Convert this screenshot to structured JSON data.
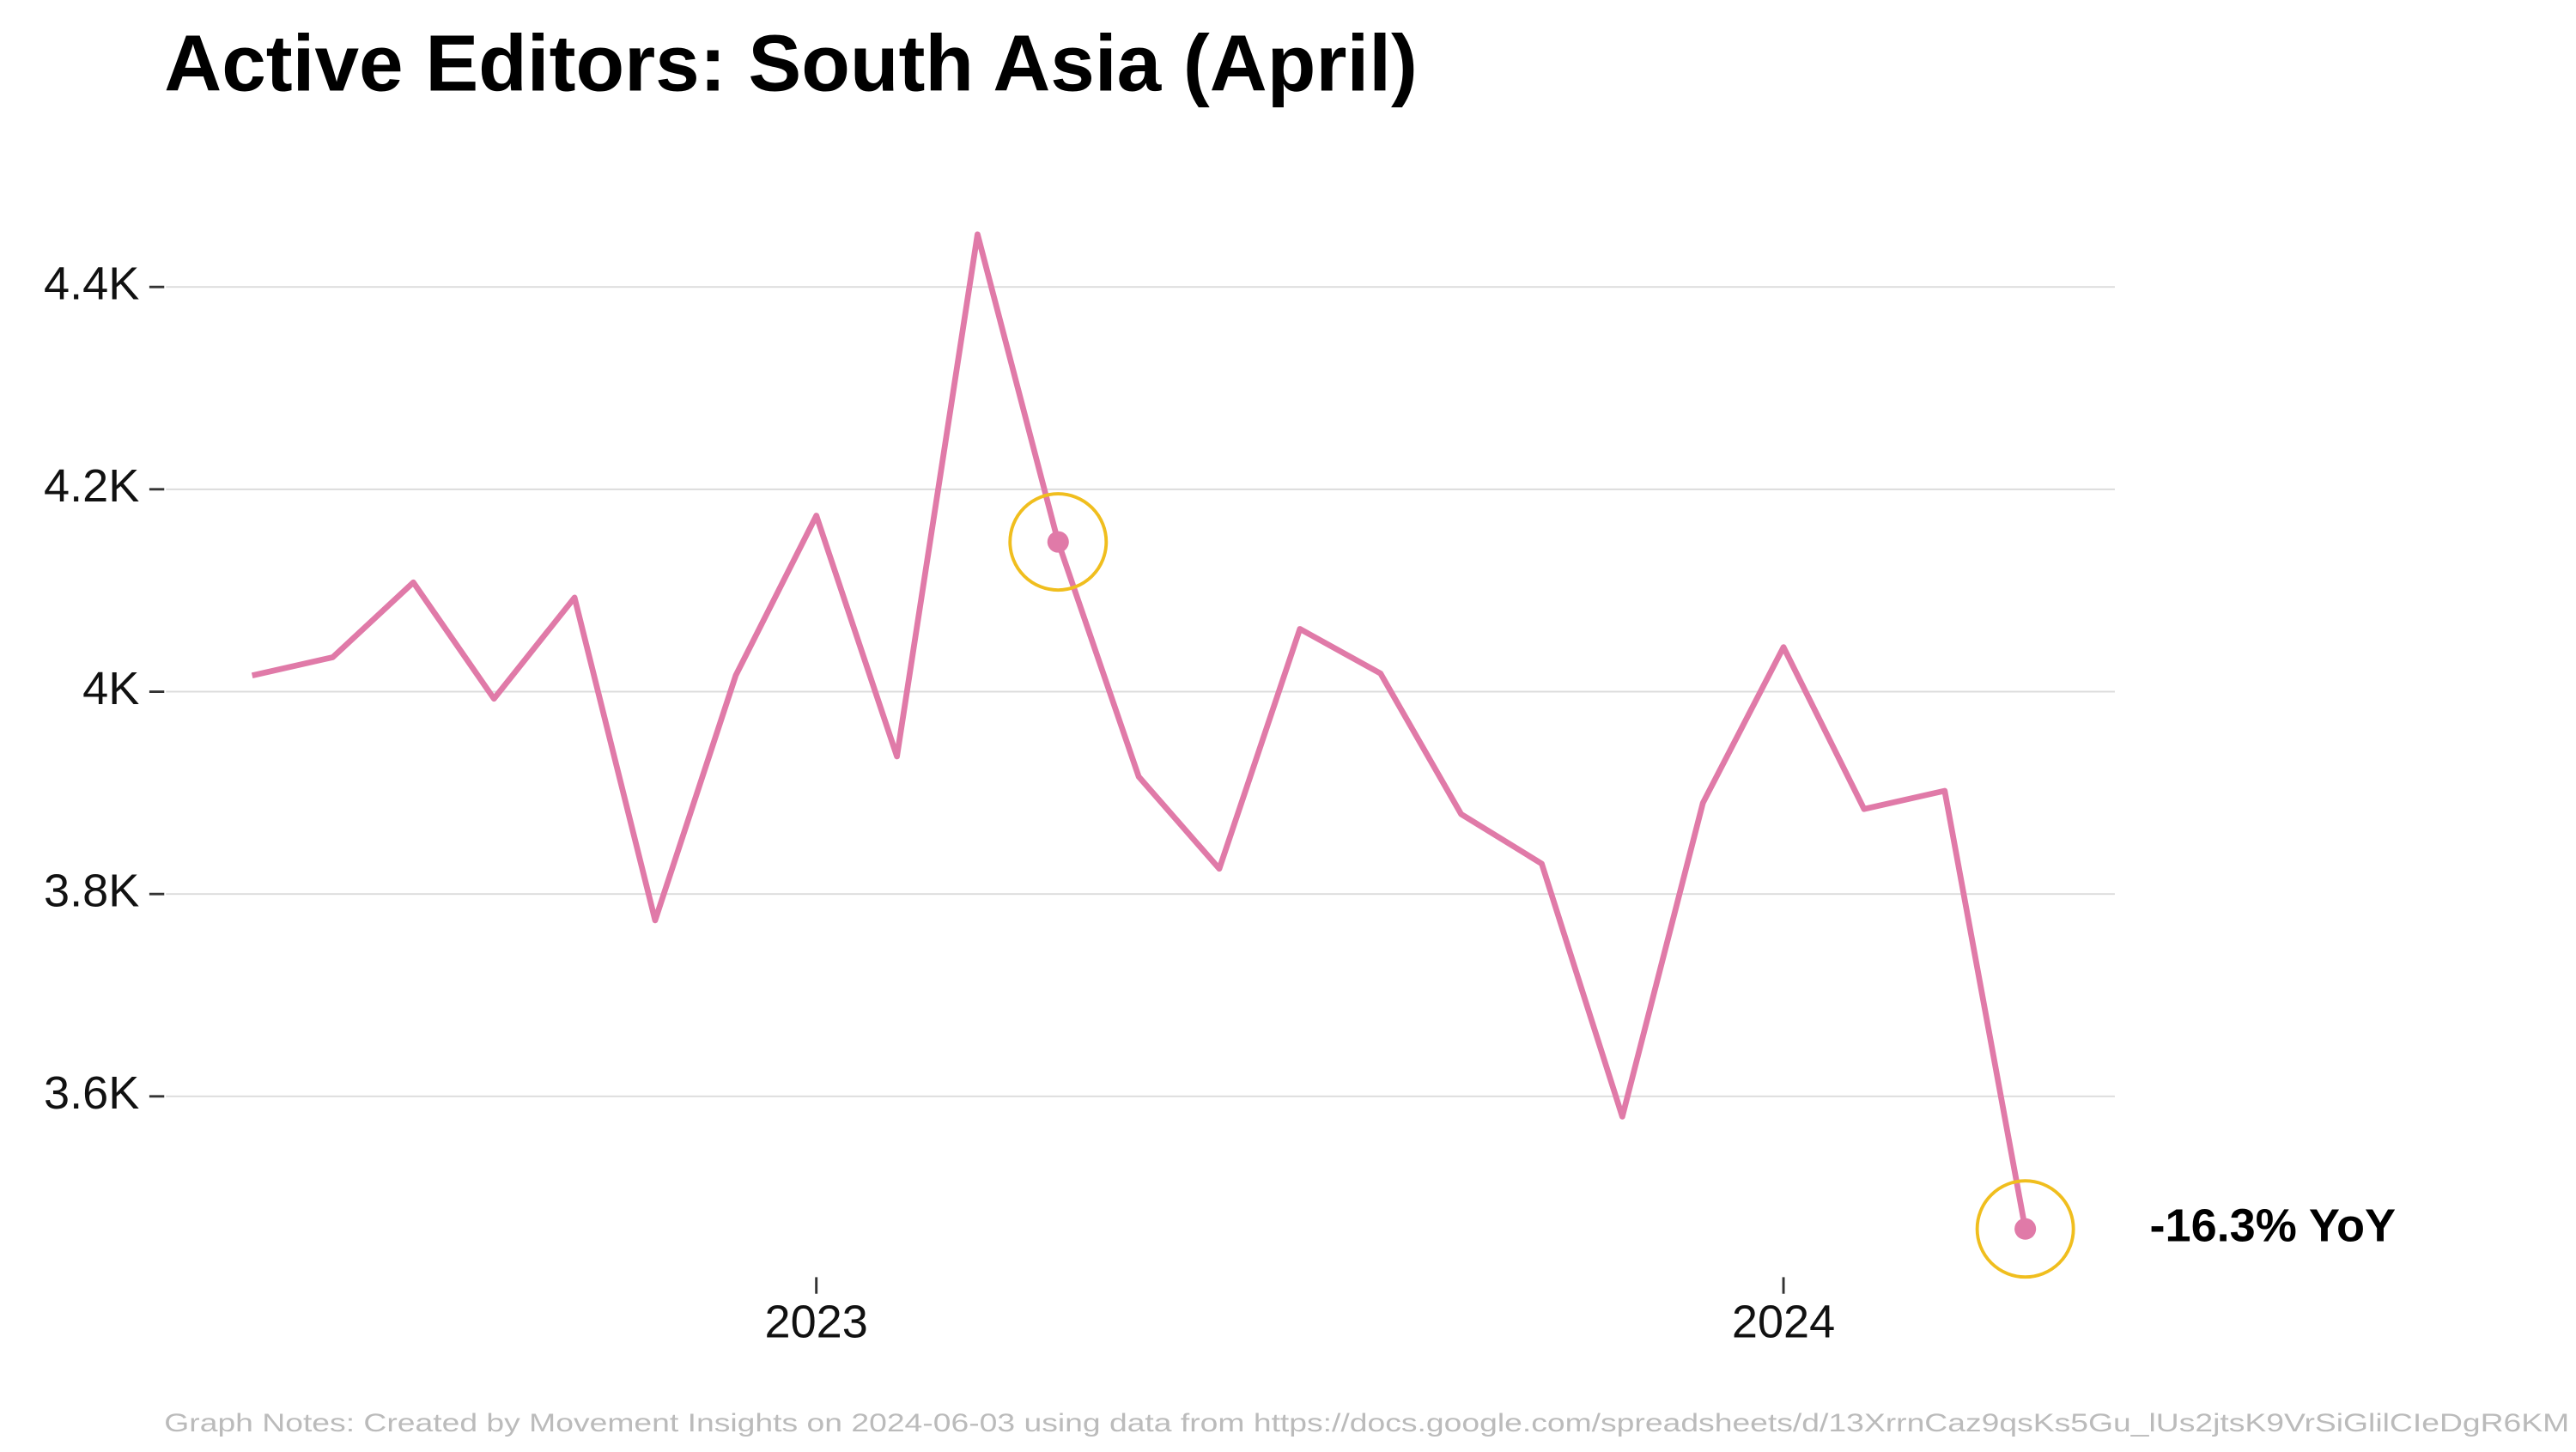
{
  "chart_data": {
    "type": "line",
    "title": "Active Editors: South Asia (April)",
    "x": [
      "2022-06",
      "2022-07",
      "2022-08",
      "2022-09",
      "2022-10",
      "2022-11",
      "2022-12",
      "2023-01",
      "2023-02",
      "2023-03",
      "2023-04",
      "2023-05",
      "2023-06",
      "2023-07",
      "2023-08",
      "2023-09",
      "2023-10",
      "2023-11",
      "2023-12",
      "2024-01",
      "2024-02",
      "2024-03",
      "2024-04"
    ],
    "series": [
      {
        "name": "Active Editors",
        "color": "#e07aa8",
        "values": [
          4016,
          4034,
          4108,
          3993,
          4093,
          3774,
          4016,
          4174,
          3936,
          4452,
          4148,
          3916,
          3825,
          4062,
          4018,
          3879,
          3830,
          3580,
          3890,
          4044,
          3884,
          3902,
          3469
        ]
      }
    ],
    "highlight_indices": [
      10,
      22
    ],
    "highlight_color": "#f0be1e",
    "annotation": "-16.3% YoY",
    "note": "Graph Notes: Created by Movement Insights on 2024-06-03 using data from https://docs.google.com/spreadsheets/d/13XrrnCaz9qsKs5Gu_lUs2jtsK9VrSiGlilCIeDgR6KM",
    "xlim": [
      "2022-06",
      "2024-04"
    ],
    "xticks": [
      {
        "value": "2023-01",
        "label": "2023"
      },
      {
        "value": "2024-01",
        "label": "2024"
      }
    ],
    "ylim": [
      3400,
      4500
    ],
    "yticks": [
      {
        "value": 3600,
        "label": "3.6K"
      },
      {
        "value": 3800,
        "label": "3.8K"
      },
      {
        "value": 4000,
        "label": "4K"
      },
      {
        "value": 4200,
        "label": "4.2K"
      },
      {
        "value": 4400,
        "label": "4.4K"
      }
    ],
    "grid": true
  }
}
